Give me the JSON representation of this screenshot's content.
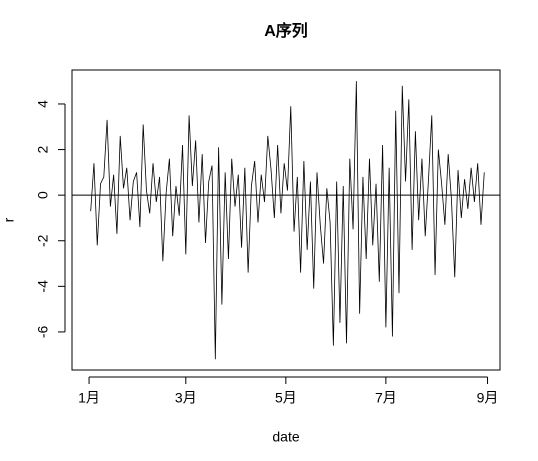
{
  "chart_data": {
    "type": "line",
    "title": "A序列",
    "xlabel": "date",
    "ylabel": "r",
    "color": "#000000",
    "hline": 0,
    "x": [
      1,
      3,
      5,
      7,
      9,
      11,
      13,
      15,
      17,
      19,
      21,
      23,
      25,
      27,
      29,
      31,
      33,
      35,
      37,
      39,
      41,
      43,
      45,
      47,
      49,
      51,
      53,
      55,
      57,
      59,
      61,
      63,
      65,
      67,
      69,
      71,
      73,
      75,
      77,
      79,
      81,
      83,
      85,
      87,
      89,
      91,
      93,
      95,
      97,
      99,
      101,
      103,
      105,
      107,
      109,
      111,
      113,
      115,
      117,
      119,
      121,
      123,
      125,
      127,
      129,
      131,
      133,
      135,
      137,
      139,
      141,
      143,
      145,
      147,
      149,
      151,
      153,
      155,
      157,
      159,
      161,
      163,
      165,
      167,
      169,
      171,
      173,
      175,
      177,
      179,
      181,
      183,
      185,
      187,
      189,
      191,
      193,
      195,
      197,
      199,
      201,
      203,
      205,
      207,
      209,
      211,
      213,
      215,
      217,
      219,
      221,
      223,
      225,
      227,
      229,
      231,
      233,
      235,
      237,
      239,
      241
    ],
    "values": [
      -0.7,
      1.4,
      -2.2,
      0.5,
      0.8,
      3.3,
      -0.5,
      0.9,
      -1.7,
      2.6,
      0.3,
      1.2,
      -1.1,
      0.6,
      1.0,
      -1.4,
      3.1,
      0.2,
      -0.8,
      1.4,
      -0.3,
      0.8,
      -2.9,
      0.1,
      1.6,
      -1.8,
      0.4,
      -0.9,
      2.2,
      -2.6,
      3.5,
      0.4,
      2.4,
      -1.2,
      1.8,
      -2.1,
      0.6,
      1.3,
      -7.2,
      2.1,
      -4.8,
      1.0,
      -2.8,
      1.6,
      -0.5,
      0.9,
      -2.3,
      1.2,
      -3.4,
      0.4,
      1.5,
      -1.2,
      0.9,
      -0.3,
      2.6,
      1.1,
      -1.0,
      2.2,
      -0.8,
      1.4,
      0.2,
      3.9,
      -1.6,
      0.8,
      -3.4,
      1.5,
      -2.4,
      0.6,
      -4.1,
      1.0,
      -1.3,
      -3.0,
      0.3,
      -1.2,
      -6.6,
      0.6,
      -5.6,
      0.4,
      -6.5,
      1.6,
      -1.5,
      5.0,
      -5.2,
      0.8,
      -2.8,
      1.6,
      -2.2,
      0.5,
      -3.8,
      2.2,
      -5.8,
      1.2,
      -6.2,
      3.7,
      -4.3,
      4.8,
      0.6,
      4.2,
      -2.4,
      2.8,
      -1.1,
      1.6,
      -1.8,
      0.7,
      3.5,
      -3.5,
      2.0,
      0.5,
      -1.3,
      1.8,
      -0.2,
      -3.6,
      1.1,
      -1.0,
      0.7,
      -0.6,
      1.2,
      -0.3,
      1.4,
      -1.3,
      1.0
    ],
    "xlim": [
      -10.4,
      250.6
    ],
    "xticks": [
      {
        "value": 0,
        "label": "1月"
      },
      {
        "value": 59,
        "label": "3月"
      },
      {
        "value": 120,
        "label": "5月"
      },
      {
        "value": 181,
        "label": "7月"
      },
      {
        "value": 243,
        "label": "9月"
      }
    ],
    "ylim": [
      -7.67,
      5.49
    ],
    "yticks": [
      -6,
      -4,
      -2,
      0,
      2,
      4
    ]
  }
}
